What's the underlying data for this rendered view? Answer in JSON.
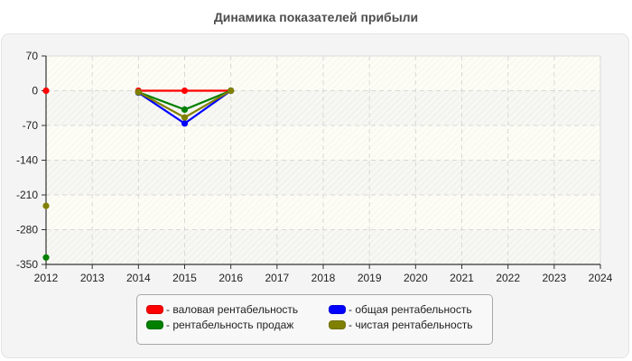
{
  "chart_data": {
    "type": "line",
    "title": "Динамика показателей прибыли",
    "xlabel": "",
    "ylabel": "",
    "x": [
      2012,
      2013,
      2014,
      2015,
      2016,
      2017,
      2018,
      2019,
      2020,
      2021,
      2022,
      2023,
      2024
    ],
    "xlim": [
      2012,
      2024
    ],
    "ylim": [
      -350,
      70
    ],
    "yticks": [
      70,
      0,
      -70,
      -140,
      -210,
      -280,
      -350
    ],
    "xticks": [
      2012,
      2013,
      2014,
      2015,
      2016,
      2017,
      2018,
      2019,
      2020,
      2021,
      2022,
      2023,
      2024
    ],
    "grid": true,
    "legend_position": "bottom",
    "series": [
      {
        "name": "- валовая рентабельность",
        "color": "#ff0000",
        "points": [
          [
            2012,
            0
          ],
          [
            2014,
            0
          ],
          [
            2015,
            0
          ],
          [
            2016,
            0
          ]
        ],
        "segments": [
          [
            [
              2014,
              0
            ],
            [
              2015,
              0
            ],
            [
              2016,
              0
            ]
          ]
        ]
      },
      {
        "name": "- общая рентабельность",
        "color": "#0000ff",
        "points": [
          [
            2014,
            -4
          ],
          [
            2015,
            -66
          ],
          [
            2016,
            0
          ]
        ],
        "segments": [
          [
            [
              2014,
              -4
            ],
            [
              2015,
              -66
            ],
            [
              2016,
              0
            ]
          ]
        ]
      },
      {
        "name": "- рентабельность продаж",
        "color": "#008000",
        "points": [
          [
            2012,
            -336
          ],
          [
            2014,
            -3
          ],
          [
            2015,
            -38
          ],
          [
            2016,
            0
          ]
        ],
        "segments": [
          [
            [
              2014,
              -3
            ],
            [
              2015,
              -38
            ],
            [
              2016,
              0
            ]
          ]
        ]
      },
      {
        "name": "- чистая рентабельность",
        "color": "#808000",
        "points": [
          [
            2012,
            -232
          ],
          [
            2014,
            -3
          ],
          [
            2015,
            -54
          ],
          [
            2016,
            0
          ]
        ],
        "segments": [
          [
            [
              2014,
              -3
            ],
            [
              2015,
              -54
            ],
            [
              2016,
              0
            ]
          ]
        ]
      }
    ]
  },
  "legend": {
    "items": [
      {
        "label": "- валовая рентабельность",
        "color": "#ff0000"
      },
      {
        "label": "- общая рентабельность",
        "color": "#0000ff"
      },
      {
        "label": "- рентабельность продаж",
        "color": "#008000"
      },
      {
        "label": "- чистая рентабельность",
        "color": "#808000"
      }
    ]
  }
}
